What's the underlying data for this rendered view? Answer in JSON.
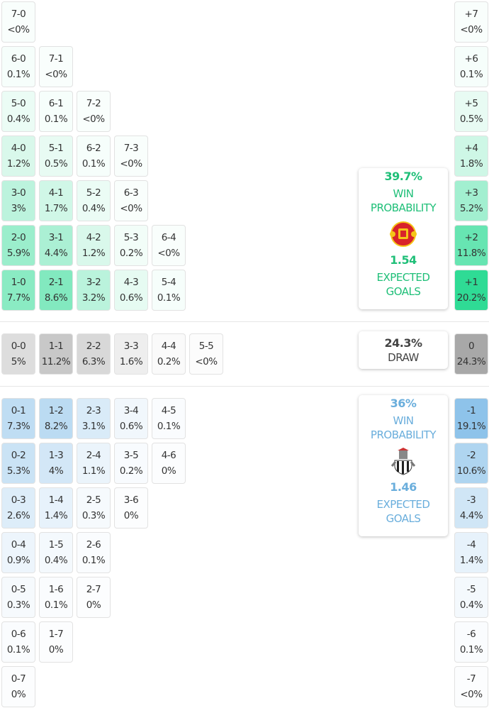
{
  "colors": {
    "home": "#2fdb95",
    "away": "#8ec3ea",
    "draw": "#a8a8a8",
    "home_text": "#1fbf78",
    "away_text": "#6aaedc",
    "draw_text": "#444444"
  },
  "home_grid": [
    [
      [
        "7-0",
        "<0%"
      ]
    ],
    [
      [
        "6-0",
        "0.1%"
      ],
      [
        "7-1",
        "<0%"
      ]
    ],
    [
      [
        "5-0",
        "0.4%"
      ],
      [
        "6-1",
        "0.1%"
      ],
      [
        "7-2",
        "<0%"
      ]
    ],
    [
      [
        "4-0",
        "1.2%"
      ],
      [
        "5-1",
        "0.5%"
      ],
      [
        "6-2",
        "0.1%"
      ],
      [
        "7-3",
        "<0%"
      ]
    ],
    [
      [
        "3-0",
        "3%"
      ],
      [
        "4-1",
        "1.7%"
      ],
      [
        "5-2",
        "0.4%"
      ],
      [
        "6-3",
        "<0%"
      ]
    ],
    [
      [
        "2-0",
        "5.9%"
      ],
      [
        "3-1",
        "4.4%"
      ],
      [
        "4-2",
        "1.2%"
      ],
      [
        "5-3",
        "0.2%"
      ],
      [
        "6-4",
        "<0%"
      ]
    ],
    [
      [
        "1-0",
        "7.7%"
      ],
      [
        "2-1",
        "8.6%"
      ],
      [
        "3-2",
        "3.2%"
      ],
      [
        "4-3",
        "0.6%"
      ],
      [
        "5-4",
        "0.1%"
      ]
    ]
  ],
  "draw_row": [
    [
      "0-0",
      "5%"
    ],
    [
      "1-1",
      "11.2%"
    ],
    [
      "2-2",
      "6.3%"
    ],
    [
      "3-3",
      "1.6%"
    ],
    [
      "4-4",
      "0.2%"
    ],
    [
      "5-5",
      "<0%"
    ]
  ],
  "away_grid": [
    [
      [
        "0-1",
        "7.3%"
      ],
      [
        "1-2",
        "8.2%"
      ],
      [
        "2-3",
        "3.1%"
      ],
      [
        "3-4",
        "0.6%"
      ],
      [
        "4-5",
        "0.1%"
      ]
    ],
    [
      [
        "0-2",
        "5.3%"
      ],
      [
        "1-3",
        "4%"
      ],
      [
        "2-4",
        "1.1%"
      ],
      [
        "3-5",
        "0.2%"
      ],
      [
        "4-6",
        "0%"
      ]
    ],
    [
      [
        "0-3",
        "2.6%"
      ],
      [
        "1-4",
        "1.4%"
      ],
      [
        "2-5",
        "0.3%"
      ],
      [
        "3-6",
        "0%"
      ]
    ],
    [
      [
        "0-4",
        "0.9%"
      ],
      [
        "1-5",
        "0.4%"
      ],
      [
        "2-6",
        "0.1%"
      ]
    ],
    [
      [
        "0-5",
        "0.3%"
      ],
      [
        "1-6",
        "0.1%"
      ],
      [
        "2-7",
        "0%"
      ]
    ],
    [
      [
        "0-6",
        "0.1%"
      ],
      [
        "1-7",
        "0%"
      ]
    ],
    [
      [
        "0-7",
        "0%"
      ]
    ]
  ],
  "margin_home": [
    [
      "+7",
      "<0%"
    ],
    [
      "+6",
      "0.1%"
    ],
    [
      "+5",
      "0.5%"
    ],
    [
      "+4",
      "1.8%"
    ],
    [
      "+3",
      "5.2%"
    ],
    [
      "+2",
      "11.8%"
    ],
    [
      "+1",
      "20.2%"
    ]
  ],
  "margin_draw": [
    "0",
    "24.3%"
  ],
  "margin_away": [
    [
      "-1",
      "19.1%"
    ],
    [
      "-2",
      "10.6%"
    ],
    [
      "-3",
      "4.4%"
    ],
    [
      "-4",
      "1.4%"
    ],
    [
      "-5",
      "0.4%"
    ],
    [
      "-6",
      "0.1%"
    ],
    [
      "-7",
      "<0%"
    ]
  ],
  "home_card": {
    "win_pct": "39.7%",
    "win_label": "WIN PROBABILITY",
    "xg": "1.54",
    "xg_label": "EXPECTED GOALS",
    "logo": "manchester-united-crest"
  },
  "draw_card": {
    "pct": "24.3%",
    "label": "DRAW"
  },
  "away_card": {
    "win_pct": "36%",
    "win_label": "WIN PROBABILITY",
    "xg": "1.46",
    "xg_label": "EXPECTED GOALS",
    "logo": "newcastle-united-crest"
  }
}
